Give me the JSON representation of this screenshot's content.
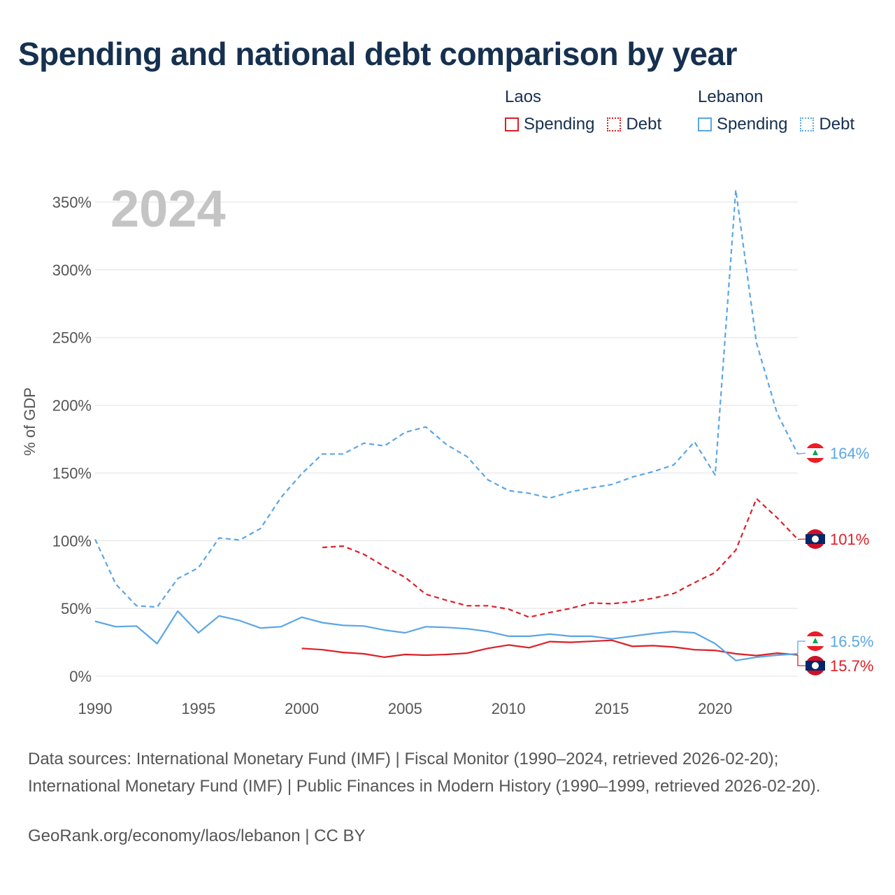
{
  "title": "Spending and national debt comparison by year",
  "legend": {
    "groups": [
      {
        "name": "Laos",
        "items": [
          {
            "label": "Spending",
            "style": "solid"
          },
          {
            "label": "Debt",
            "style": "dotted"
          }
        ]
      },
      {
        "name": "Lebanon",
        "items": [
          {
            "label": "Spending",
            "style": "solid"
          },
          {
            "label": "Debt",
            "style": "dotted"
          }
        ]
      }
    ]
  },
  "colors": {
    "laos": "#dc1f26",
    "lebanon": "#5aa6e6",
    "year_watermark": "#c4c4c4",
    "grid": "#e6e6e6",
    "text": "#16304f",
    "axis_text": "#555555"
  },
  "chart_data": {
    "type": "line",
    "current_year_label": "2024",
    "ylabel": "% of GDP",
    "xlim": [
      1990,
      2024
    ],
    "ylim": [
      0,
      350
    ],
    "xticks": [
      1990,
      1995,
      2000,
      2005,
      2010,
      2015,
      2020
    ],
    "yticks": [
      0,
      50,
      100,
      150,
      200,
      250,
      300,
      350
    ],
    "ytick_labels": [
      "0%",
      "50%",
      "100%",
      "150%",
      "200%",
      "250%",
      "300%",
      "350%"
    ],
    "series": [
      {
        "name": "Laos Spending",
        "country": "Laos",
        "metric": "Spending",
        "color": "#dc1f26",
        "dash": "solid",
        "x": [
          2000,
          2001,
          2002,
          2003,
          2004,
          2005,
          2006,
          2007,
          2008,
          2009,
          2010,
          2011,
          2012,
          2013,
          2014,
          2015,
          2016,
          2017,
          2018,
          2019,
          2020,
          2021,
          2022,
          2023,
          2024
        ],
        "y": [
          20.5,
          19.5,
          17.5,
          16.5,
          14.0,
          16.0,
          15.5,
          16.0,
          17.0,
          20.5,
          23.0,
          21.0,
          25.5,
          25.0,
          25.7,
          26.5,
          22.0,
          22.5,
          21.5,
          19.5,
          19.0,
          16.5,
          15.2,
          17.0,
          15.7
        ],
        "end_label": "15.7%"
      },
      {
        "name": "Laos Debt",
        "country": "Laos",
        "metric": "Debt",
        "color": "#dc1f26",
        "dash": "dashed",
        "x": [
          2001,
          2002,
          2003,
          2004,
          2005,
          2006,
          2007,
          2008,
          2009,
          2010,
          2011,
          2012,
          2013,
          2014,
          2015,
          2016,
          2017,
          2018,
          2019,
          2020,
          2021,
          2022,
          2023,
          2024
        ],
        "y": [
          95,
          96,
          90,
          81,
          73,
          60.5,
          56,
          52,
          52,
          49.5,
          43.5,
          47,
          50,
          54,
          53.5,
          55,
          57.5,
          61,
          69,
          76.5,
          93,
          131,
          117,
          101
        ],
        "end_label": "101%"
      },
      {
        "name": "Lebanon Spending",
        "country": "Lebanon",
        "metric": "Spending",
        "color": "#5aa6e6",
        "dash": "solid",
        "x": [
          1990,
          1991,
          1992,
          1993,
          1994,
          1995,
          1996,
          1997,
          1998,
          1999,
          2000,
          2001,
          2002,
          2003,
          2004,
          2005,
          2006,
          2007,
          2008,
          2009,
          2010,
          2011,
          2012,
          2013,
          2014,
          2015,
          2016,
          2017,
          2018,
          2019,
          2020,
          2021,
          2022,
          2023,
          2024
        ],
        "y": [
          40.5,
          36.5,
          37,
          24,
          48,
          32,
          44.5,
          41,
          35.5,
          36.5,
          43.5,
          39.5,
          37.5,
          37,
          34,
          32,
          36.5,
          36,
          35,
          33,
          29.5,
          29.5,
          31,
          29.5,
          29.5,
          27.5,
          29.5,
          31.5,
          33,
          32,
          24,
          11.5,
          14,
          15.5,
          16.5
        ],
        "end_label": "16.5%"
      },
      {
        "name": "Lebanon Debt",
        "country": "Lebanon",
        "metric": "Debt",
        "color": "#5aa6e6",
        "dash": "dashed",
        "x": [
          1990,
          1991,
          1992,
          1993,
          1994,
          1995,
          1996,
          1997,
          1998,
          1999,
          2000,
          2001,
          2002,
          2003,
          2004,
          2005,
          2006,
          2007,
          2008,
          2009,
          2010,
          2011,
          2012,
          2013,
          2014,
          2015,
          2016,
          2017,
          2018,
          2019,
          2020,
          2021,
          2022,
          2023,
          2024
        ],
        "y": [
          101,
          68,
          52,
          51,
          72,
          80,
          102,
          100.5,
          109,
          132,
          149.5,
          164,
          164,
          172,
          170,
          180,
          184,
          171,
          162,
          145,
          137,
          135,
          131.5,
          136,
          139,
          141.5,
          147,
          151,
          156,
          173,
          148.5,
          359,
          246,
          194,
          164
        ],
        "end_label": "164%"
      }
    ]
  },
  "footer": {
    "sources": "Data sources: International Monetary Fund (IMF) | Fiscal Monitor (1990–2024, retrieved 2026-02-20); International Monetary Fund (IMF) | Public Finances in Modern History (1990–1999, retrieved 2026-02-20).",
    "credit": "GeoRank.org/economy/laos/lebanon | CC BY"
  }
}
